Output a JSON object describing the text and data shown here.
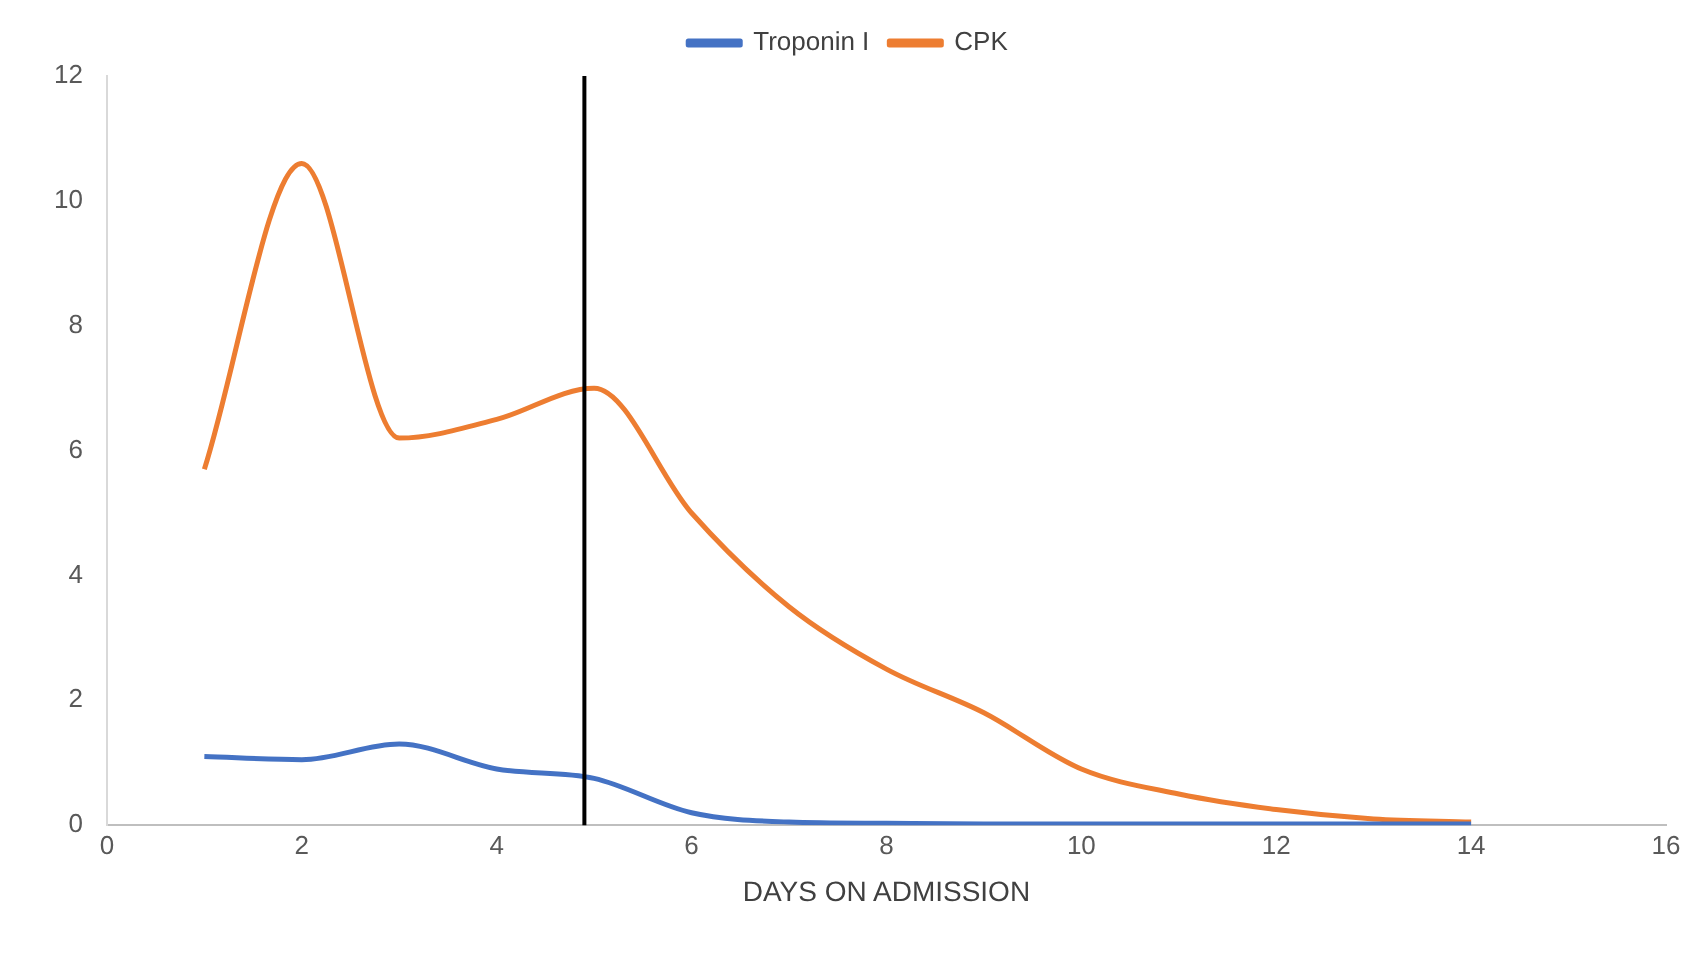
{
  "chart_data": {
    "type": "line",
    "xlabel": "DAYS ON ADMISSION",
    "x": [
      1,
      2,
      3,
      4,
      5,
      6,
      7,
      8,
      9,
      10,
      11,
      12,
      13,
      14
    ],
    "series": [
      {
        "name": "Troponin I",
        "color": "#4472c4",
        "values": [
          1.1,
          1.05,
          1.3,
          0.9,
          0.75,
          0.2,
          0.05,
          0.03,
          0.02,
          0.02,
          0.02,
          0.02,
          0.02,
          0.02
        ]
      },
      {
        "name": "CPK",
        "color": "#ed7d31",
        "values": [
          5.7,
          10.6,
          6.2,
          6.5,
          7.0,
          5.0,
          3.5,
          2.5,
          1.8,
          0.9,
          0.5,
          0.25,
          0.1,
          0.05
        ]
      }
    ],
    "xlim": [
      0,
      16
    ],
    "xticks": [
      0,
      2,
      4,
      6,
      8,
      10,
      12,
      14,
      16
    ],
    "ylim": [
      0,
      12
    ],
    "yticks": [
      0,
      2,
      4,
      6,
      8,
      10,
      12
    ],
    "ref_lines": [
      {
        "axis": "x",
        "value": 4.9,
        "color": "#000000"
      }
    ],
    "grid": false,
    "legend": "top",
    "marker": "none",
    "line_style": "solid"
  }
}
